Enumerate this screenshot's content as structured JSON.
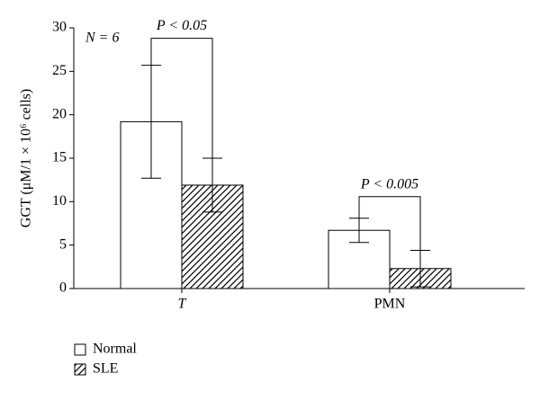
{
  "chart_data": {
    "type": "bar",
    "y_label": "GGT (μM/1 × 10⁶ cells)",
    "categories": [
      "T",
      "PMN"
    ],
    "series": [
      {
        "name": "Normal",
        "color": "#ffffff",
        "hatch": false,
        "values": [
          19.2,
          6.7
        ],
        "errors": [
          6.5,
          1.4
        ]
      },
      {
        "name": "SLE",
        "color": "#000000",
        "hatch": true,
        "values": [
          11.9,
          2.3
        ],
        "errors": [
          3.1,
          2.1
        ]
      }
    ],
    "annotations": [
      "N = 6",
      "P < 0.05",
      "P < 0.005"
    ],
    "ylim": [
      0,
      30
    ],
    "yticks": [
      0,
      5,
      10,
      15,
      20,
      25,
      30
    ],
    "grid": false,
    "legend": "bottom-left"
  }
}
